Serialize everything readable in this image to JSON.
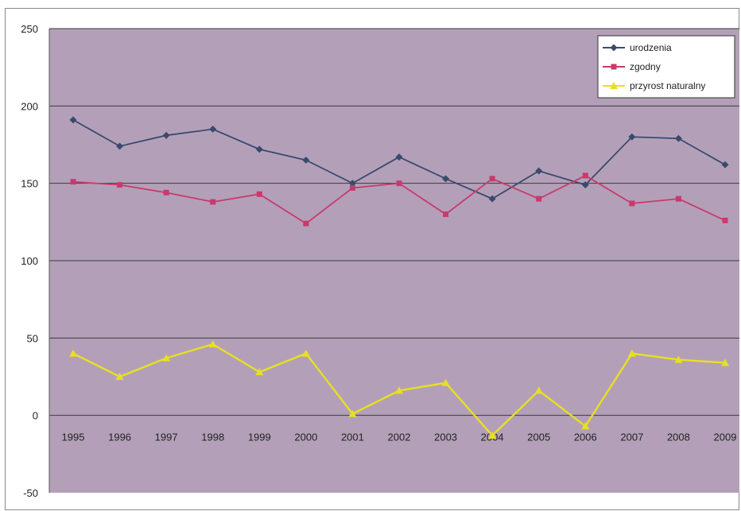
{
  "chart_data": {
    "type": "line",
    "categories": [
      "1995",
      "1996",
      "1997",
      "1998",
      "1999",
      "2000",
      "2001",
      "2002",
      "2003",
      "2004",
      "2005",
      "2006",
      "2007",
      "2008",
      "2009"
    ],
    "ylim": [
      -50,
      250
    ],
    "yticks": [
      -50,
      0,
      50,
      100,
      150,
      200,
      250
    ],
    "grid": true,
    "legend_position": "top-right",
    "plot_background": "#b3a0b8",
    "series": [
      {
        "name": "urodzenia",
        "color": "#3a4a6e",
        "marker": "diamond",
        "values": [
          191,
          174,
          181,
          185,
          172,
          165,
          150,
          167,
          153,
          140,
          158,
          149,
          180,
          179,
          162
        ]
      },
      {
        "name": "zgodny",
        "color": "#c83a6e",
        "marker": "square",
        "values": [
          151,
          149,
          144,
          138,
          143,
          124,
          147,
          150,
          130,
          153,
          140,
          155,
          137,
          140,
          126
        ]
      },
      {
        "name": "przyrost naturalny",
        "color": "#e8e020",
        "marker": "triangle",
        "values": [
          40,
          25,
          37,
          46,
          28,
          40,
          1,
          16,
          21,
          -13,
          16,
          -7,
          40,
          36,
          34
        ]
      }
    ]
  }
}
